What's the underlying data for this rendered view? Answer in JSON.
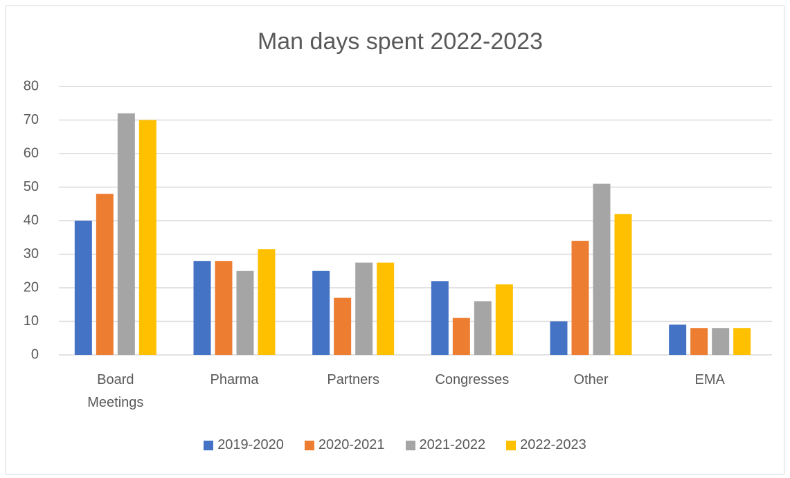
{
  "chart_data": {
    "type": "bar",
    "title": "Man days spent 2022-2023",
    "categories": [
      "Board Meetings",
      "Pharma",
      "Partners",
      "Congresses",
      "Other",
      "EMA"
    ],
    "series": [
      {
        "name": "2019-2020",
        "color": "#4472c4",
        "values": [
          40,
          28,
          25,
          22,
          10,
          9
        ]
      },
      {
        "name": "2020-2021",
        "color": "#ed7d31",
        "values": [
          48,
          28,
          17,
          11,
          34,
          8
        ]
      },
      {
        "name": "2021-2022",
        "color": "#a5a5a5",
        "values": [
          72,
          25,
          27.5,
          16,
          51,
          8
        ]
      },
      {
        "name": "2022-2023",
        "color": "#ffc000",
        "values": [
          70,
          31.5,
          27.5,
          21,
          42,
          8
        ]
      }
    ],
    "ylim": [
      0,
      80
    ],
    "yticks": [
      0,
      10,
      20,
      30,
      40,
      50,
      60,
      70,
      80
    ],
    "grid": true,
    "legend": "bottom"
  }
}
